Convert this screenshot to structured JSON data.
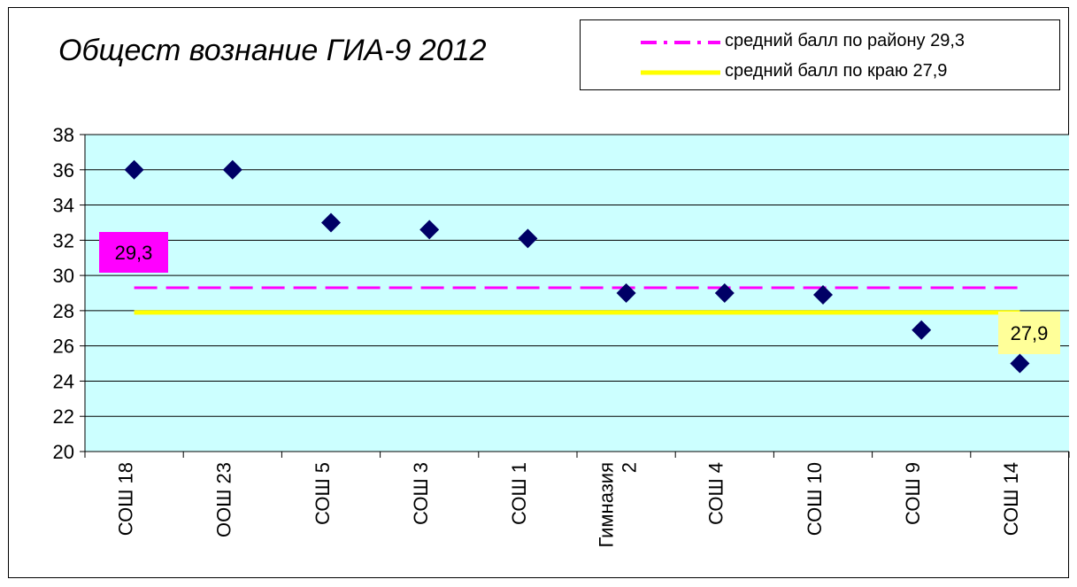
{
  "chart_data": {
    "type": "scatter",
    "title": "Общест вознание ГИА-9 2012",
    "categories": [
      "СОШ 18",
      "ООШ 23",
      "СОШ 5",
      "СОШ 3",
      "СОШ 1",
      "Гимназия 2",
      "СОШ 4",
      "СОШ 10",
      "СОШ 9",
      "СОШ 14"
    ],
    "category_labels": [
      [
        "СОШ 18"
      ],
      [
        "ООШ 23"
      ],
      [
        "СОШ 5"
      ],
      [
        "СОШ 3"
      ],
      [
        "СОШ 1"
      ],
      [
        "Гимназия",
        "2"
      ],
      [
        "СОШ 4"
      ],
      [
        "СОШ 10"
      ],
      [
        "СОШ 9"
      ],
      [
        "СОШ 14"
      ]
    ],
    "series": [
      {
        "values": [
          36,
          36,
          33,
          32.6,
          32.1,
          29,
          29,
          28.9,
          26.9,
          25
        ],
        "color": "#000066",
        "marker": "diamond"
      }
    ],
    "reference_lines": [
      {
        "name": "средний балл по району 29,3",
        "value": 29.3,
        "label": "29,3",
        "color": "#ff00ff",
        "style": "dashed",
        "label_bg": "#ff00ff"
      },
      {
        "name": "средний балл по краю 27,9",
        "value": 27.9,
        "label": "27,9",
        "color": "#ffff00",
        "style": "solid",
        "label_bg": "#ffff99"
      }
    ],
    "ylim": [
      20,
      38
    ],
    "ytick_step": 2,
    "ytick_labels": [
      "20",
      "22",
      "24",
      "26",
      "28",
      "30",
      "32",
      "34",
      "36",
      "38"
    ],
    "grid": true,
    "plot_background": "#ccffff",
    "legend_position": "top-right"
  }
}
